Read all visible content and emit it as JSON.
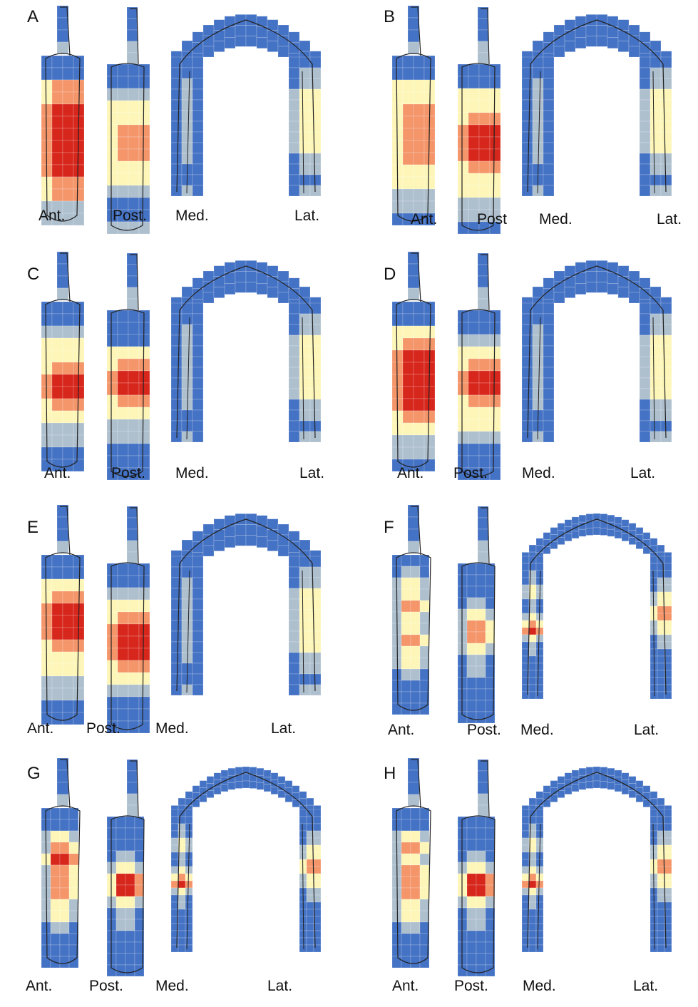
{
  "panels": [
    {
      "letter": "A",
      "labels": [
        "Ant.",
        "Post.",
        "Med.",
        "Lat."
      ],
      "style": "coarse",
      "ant": [
        1,
        1,
        4,
        4,
        5,
        5,
        5,
        5,
        5,
        5,
        4,
        4,
        2,
        2
      ],
      "post": [
        1,
        1,
        2,
        3,
        3,
        4,
        4,
        4,
        3,
        3,
        2,
        1,
        1,
        2
      ]
    },
    {
      "letter": "B",
      "labels": [
        "Ant.",
        "Post",
        "Med.",
        "Lat."
      ],
      "style": "coarse",
      "ant": [
        1,
        1,
        3,
        3,
        4,
        4,
        4,
        4,
        4,
        3,
        3,
        2,
        2,
        1
      ],
      "post": [
        1,
        1,
        3,
        3,
        4,
        5,
        5,
        5,
        4,
        3,
        3,
        2,
        2,
        1
      ]
    },
    {
      "letter": "C",
      "labels": [
        "Ant.",
        "Post.",
        "Med.",
        "Lat."
      ],
      "style": "coarse",
      "ant": [
        1,
        1,
        2,
        3,
        3,
        4,
        5,
        5,
        4,
        3,
        2,
        2,
        1,
        1
      ],
      "post": [
        1,
        1,
        1,
        3,
        4,
        5,
        5,
        4,
        3,
        2,
        2,
        1,
        1,
        1
      ]
    },
    {
      "letter": "D",
      "labels": [
        "Ant.",
        "Post.",
        "Med.",
        "Lat."
      ],
      "style": "coarse",
      "ant": [
        1,
        1,
        3,
        4,
        5,
        5,
        5,
        5,
        5,
        4,
        3,
        2,
        2,
        1
      ],
      "post": [
        1,
        1,
        2,
        3,
        4,
        5,
        5,
        4,
        3,
        3,
        2,
        1,
        1,
        1
      ]
    },
    {
      "letter": "E",
      "labels": [
        "Ant.",
        "Post.",
        "Med.",
        "Lat."
      ],
      "style": "coarse",
      "ant": [
        1,
        1,
        3,
        4,
        5,
        5,
        5,
        4,
        3,
        3,
        2,
        2,
        1,
        1
      ],
      "post": [
        1,
        1,
        2,
        3,
        4,
        5,
        5,
        5,
        4,
        3,
        2,
        1,
        1,
        1
      ]
    },
    {
      "letter": "F",
      "labels": [
        "Ant.",
        "Post.",
        "Med.",
        "Lat."
      ],
      "style": "fine",
      "ant": [
        1,
        2,
        3,
        3,
        4,
        3,
        3,
        4,
        3,
        3,
        2,
        1,
        1,
        1
      ],
      "post": [
        1,
        1,
        1,
        2,
        3,
        4,
        4,
        3,
        2,
        2,
        1,
        1,
        1,
        1
      ]
    },
    {
      "letter": "G",
      "labels": [
        "Ant.",
        "Post.",
        "Med.",
        "Lat."
      ],
      "style": "fine",
      "ant": [
        1,
        1,
        3,
        4,
        5,
        4,
        4,
        4,
        3,
        3,
        2,
        1,
        1,
        1
      ],
      "post": [
        1,
        1,
        1,
        2,
        3,
        5,
        5,
        3,
        2,
        2,
        1,
        1,
        1,
        1
      ]
    },
    {
      "letter": "H",
      "labels": [
        "Ant.",
        "Post.",
        "Med.",
        "Lat."
      ],
      "style": "fine",
      "ant": [
        1,
        1,
        3,
        4,
        3,
        4,
        4,
        4,
        3,
        3,
        2,
        1,
        1,
        1
      ],
      "post": [
        1,
        1,
        1,
        2,
        3,
        5,
        5,
        3,
        2,
        2,
        1,
        1,
        1,
        1
      ]
    }
  ],
  "colors": {
    "level1": "#4472c4",
    "level2": "#aebfce",
    "level3": "#fdf6b8",
    "level4": "#f4956a",
    "level5": "#d7261b",
    "outline": "#222222",
    "grid": "#ffffff"
  }
}
